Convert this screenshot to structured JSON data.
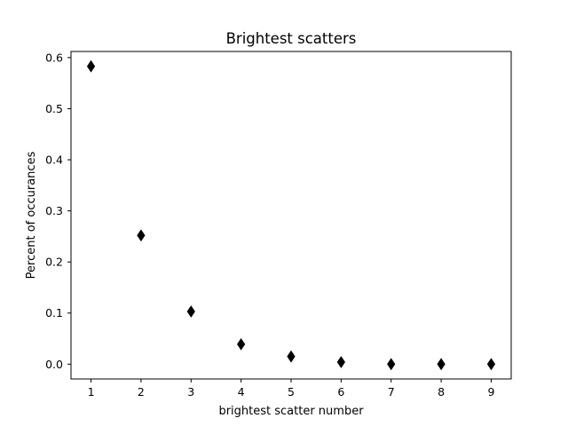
{
  "chart_data": {
    "type": "scatter",
    "title": "Brightest scatters",
    "xlabel": "brightest scatter number",
    "ylabel": "Percent of occurances",
    "xlim": [
      0.6,
      9.4
    ],
    "ylim": [
      -0.029,
      0.612
    ],
    "xticks": [
      "1",
      "2",
      "3",
      "4",
      "5",
      "6",
      "7",
      "8",
      "9"
    ],
    "yticks": [
      "0.0",
      "0.1",
      "0.2",
      "0.3",
      "0.4",
      "0.5",
      "0.6"
    ],
    "grid": false,
    "marker": "diamond",
    "marker_color": "#000000",
    "series": [
      {
        "x": [
          1,
          2,
          3,
          4,
          5,
          6,
          7,
          8,
          9
        ],
        "y": [
          0.583,
          0.252,
          0.103,
          0.039,
          0.015,
          0.004,
          0.0,
          0.0,
          0.0
        ]
      }
    ]
  }
}
